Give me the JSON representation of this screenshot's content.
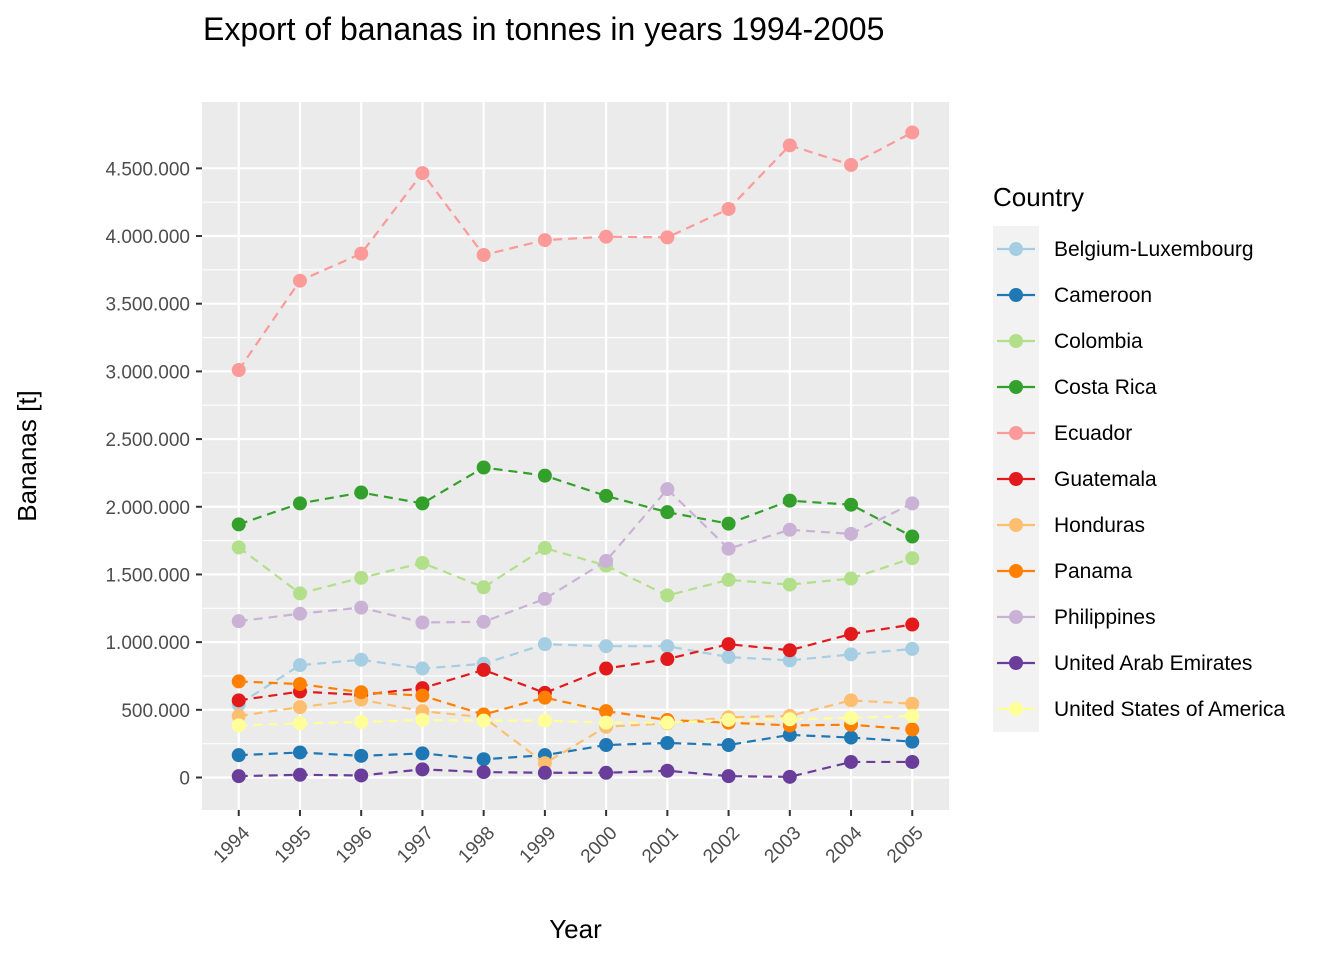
{
  "chart_data": {
    "type": "line",
    "title": "Export of bananas in tonnes in years 1994-2005",
    "xlabel": "Year",
    "ylabel": "Bananas [t]",
    "x": [
      1994,
      1995,
      1996,
      1997,
      1998,
      1999,
      2000,
      2001,
      2002,
      2003,
      2004,
      2005
    ],
    "x_tick_labels": [
      "1994",
      "1995",
      "1996",
      "1997",
      "1998",
      "1999",
      "2000",
      "2001",
      "2002",
      "2003",
      "2004",
      "2005"
    ],
    "y_ticks": [
      0,
      500000,
      1000000,
      1500000,
      2000000,
      2500000,
      3000000,
      3500000,
      4000000,
      4500000
    ],
    "y_tick_labels": [
      "0",
      "500.000",
      "1.000.000",
      "1.500.000",
      "2.000.000",
      "2.500.000",
      "3.000.000",
      "3.500.000",
      "4.000.000",
      "4.500.000"
    ],
    "ylim": [
      -240000,
      4990000
    ],
    "grid": true,
    "legend": {
      "title": "Country",
      "placement": "right"
    },
    "series": [
      {
        "name": "Belgium-Luxembourg",
        "color": "#A6CEE3",
        "values": [
          540000,
          830000,
          870000,
          805000,
          840000,
          985000,
          970000,
          970000,
          890000,
          865000,
          910000,
          950000
        ]
      },
      {
        "name": "Cameroon",
        "color": "#1F78B4",
        "values": [
          165000,
          185000,
          160000,
          178000,
          135000,
          165000,
          240000,
          255000,
          240000,
          315000,
          295000,
          265000
        ]
      },
      {
        "name": "Colombia",
        "color": "#B2DF8A",
        "values": [
          1700000,
          1360000,
          1475000,
          1585000,
          1405000,
          1695000,
          1565000,
          1345000,
          1460000,
          1425000,
          1470000,
          1620000
        ]
      },
      {
        "name": "Costa Rica",
        "color": "#33A02C",
        "values": [
          1870000,
          2025000,
          2105000,
          2025000,
          2290000,
          2230000,
          2080000,
          1960000,
          1875000,
          2045000,
          2015000,
          1780000
        ]
      },
      {
        "name": "Ecuador",
        "color": "#FB9A99",
        "values": [
          3010000,
          3670000,
          3870000,
          4465000,
          3860000,
          3970000,
          3995000,
          3990000,
          4200000,
          4670000,
          4525000,
          4765000
        ]
      },
      {
        "name": "Guatemala",
        "color": "#E31A1C",
        "values": [
          570000,
          635000,
          610000,
          660000,
          795000,
          625000,
          805000,
          875000,
          985000,
          940000,
          1060000,
          1130000
        ]
      },
      {
        "name": "Honduras",
        "color": "#FDBF6F",
        "values": [
          455000,
          520000,
          575000,
          490000,
          445000,
          105000,
          375000,
          400000,
          445000,
          455000,
          570000,
          545000
        ]
      },
      {
        "name": "Panama",
        "color": "#FF7F00",
        "values": [
          710000,
          690000,
          630000,
          605000,
          465000,
          590000,
          490000,
          425000,
          405000,
          385000,
          390000,
          355000
        ]
      },
      {
        "name": "Philippines",
        "color": "#CAB2D6",
        "values": [
          1155000,
          1210000,
          1255000,
          1145000,
          1150000,
          1320000,
          1600000,
          2130000,
          1690000,
          1830000,
          1800000,
          2025000
        ]
      },
      {
        "name": "United Arab Emirates",
        "color": "#6A3D9A",
        "values": [
          10000,
          20000,
          15000,
          60000,
          40000,
          35000,
          35000,
          50000,
          10000,
          5000,
          115000,
          115000
        ]
      },
      {
        "name": "United States of America",
        "color": "#FFFF99",
        "values": [
          385000,
          400000,
          410000,
          425000,
          420000,
          420000,
          405000,
          405000,
          425000,
          430000,
          440000,
          455000
        ]
      }
    ]
  }
}
